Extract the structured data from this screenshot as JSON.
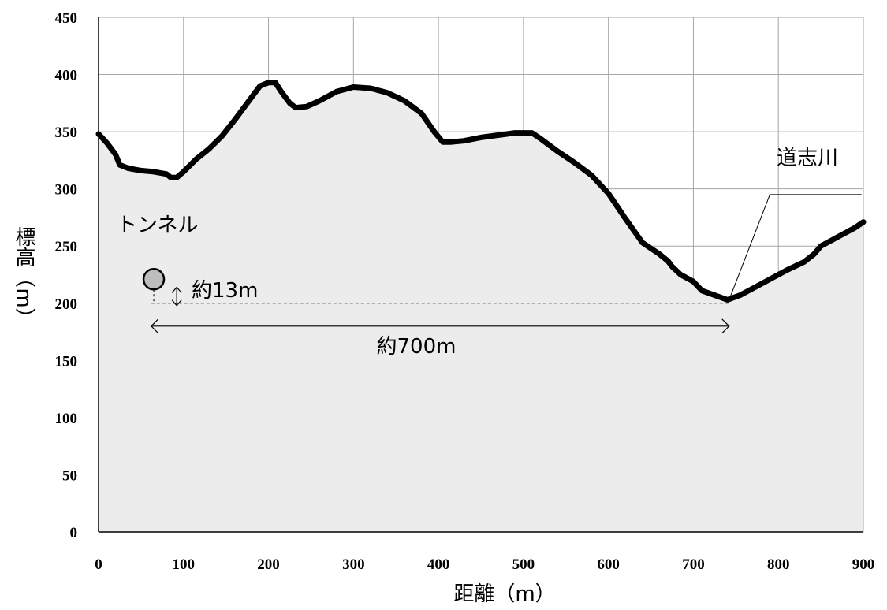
{
  "chart_data": {
    "type": "area",
    "xlabel": "距離（m）",
    "ylabel": "標高（m）",
    "xlim": [
      0,
      900
    ],
    "ylim": [
      0,
      450
    ],
    "x_ticks": [
      0,
      100,
      200,
      300,
      400,
      500,
      600,
      700,
      800,
      900
    ],
    "y_ticks": [
      0,
      50,
      100,
      150,
      200,
      250,
      300,
      350,
      400,
      450
    ],
    "grid": true,
    "series": [
      {
        "x": [
          0,
          10,
          20,
          25,
          35,
          50,
          65,
          80,
          85,
          92,
          100,
          115,
          130,
          145,
          160,
          175,
          190,
          200,
          208,
          215,
          225,
          232,
          245,
          260,
          280,
          300,
          320,
          340,
          360,
          380,
          395,
          405,
          415,
          430,
          450,
          470,
          490,
          510,
          520,
          540,
          560,
          580,
          600,
          620,
          640,
          660,
          670,
          675,
          685,
          700,
          710,
          725,
          740,
          755,
          770,
          790,
          810,
          830,
          842,
          850,
          860,
          870,
          880,
          890,
          900
        ],
        "y": [
          348,
          340,
          330,
          321,
          318,
          316,
          315,
          313,
          310,
          310,
          315,
          326,
          335,
          346,
          360,
          375,
          390,
          393,
          393,
          385,
          375,
          371,
          372,
          377,
          385,
          389,
          388,
          384,
          377,
          366,
          350,
          341,
          341,
          342,
          345,
          347,
          349,
          349,
          344,
          333,
          323,
          312,
          296,
          274,
          253,
          243,
          237,
          232,
          225,
          219,
          211,
          207,
          203,
          207,
          213,
          221,
          229,
          236,
          243,
          250,
          254,
          258,
          262,
          266,
          271
        ],
        "color": "#000000",
        "fill": "#ececec"
      }
    ],
    "annotations": {
      "tunnel_label": "トンネル",
      "river_label": "道志川",
      "height_diff_label": "約13m",
      "distance_label": "約700m",
      "tunnel_point": {
        "x": 65,
        "y": 221
      },
      "river_point": {
        "x": 740,
        "y": 202
      },
      "distance_arrow": {
        "x_from": 62,
        "x_to": 742,
        "y": 180
      },
      "height_diff_arrow": {
        "x": 92,
        "y_from": 214,
        "y_to": 198
      },
      "reference_line": {
        "x_from": 62,
        "x_to": 742,
        "y": 200
      },
      "river_leader": {
        "x_from": 742,
        "y_from": 203,
        "x_to": 790,
        "y_to": 295,
        "x_end": 898
      }
    }
  }
}
